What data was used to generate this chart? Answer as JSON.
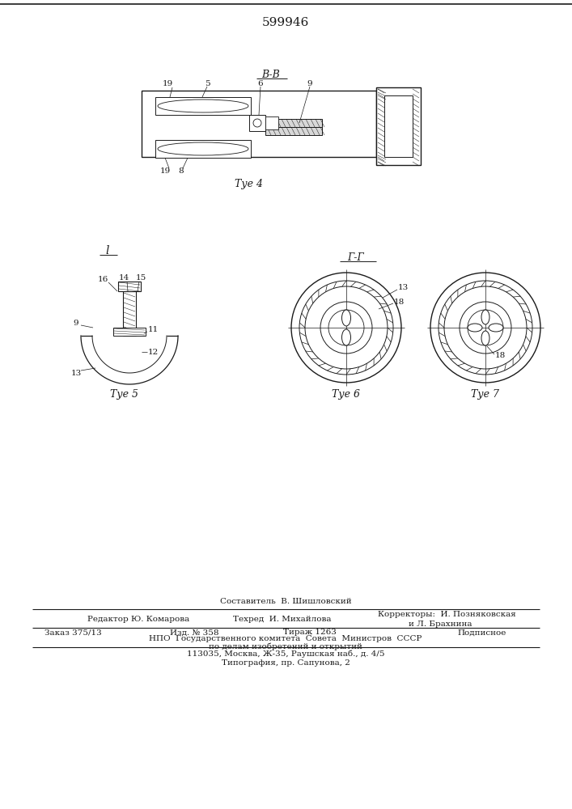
{
  "title": "599946",
  "bg": "#ffffff",
  "lc": "#1a1a1a",
  "fig4_caption": "Τуе 4",
  "fig5_caption": "Τуе 5",
  "fig6_caption": "Τуе 6",
  "fig7_caption": "Τуе 7",
  "label_BB": "B-B",
  "label_l": "l",
  "label_GG": "Г-Г",
  "footer_sestavitel": "Составитель  В. Шишловский",
  "footer_redaktor": "Редактор Ю. Комарова",
  "footer_tehred": "Техред  И. Михайлова",
  "footer_korrektory": "Корректоры:  И. Позняковская",
  "footer_braxnina": "и Л. Брахнина",
  "footer_zakaz": "Заказ 375/13",
  "footer_izd": "Изд. № 358",
  "footer_tirazh": "Тираж 1263",
  "footer_podpisnoe": "Подписное",
  "footer_npo": "НПО  Государственного комитета  Совета  Министров  СССР",
  "footer_dela": "по делам изобретений и открытий",
  "footer_addr": "113035, Москва, Ж-35, Раушская наб., д. 4/5",
  "footer_tipo": "Типография, пр. Сапунова, 2"
}
